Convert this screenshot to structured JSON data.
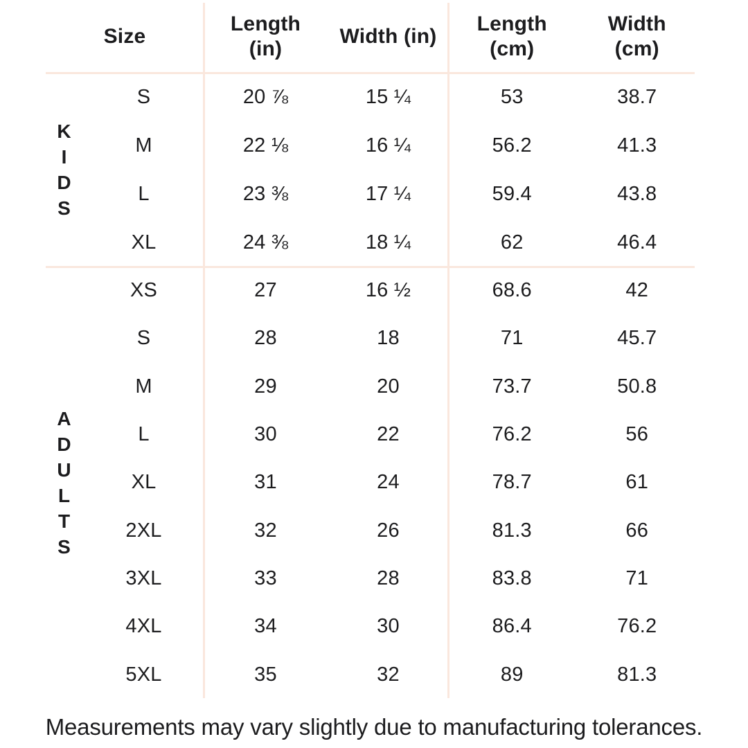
{
  "colors": {
    "background": "#ffffff",
    "text": "#1c1c1e",
    "divider": "#fae7dd"
  },
  "header_display": {
    "size": [
      "Size"
    ],
    "length_in": [
      "Length",
      "(in)"
    ],
    "width_in": [
      "Width (in)"
    ],
    "length_cm": [
      "Length",
      "(cm)"
    ],
    "width_cm": [
      "Width",
      "(cm)"
    ]
  },
  "chart_data": {
    "type": "table",
    "title": "Apparel size chart",
    "columns": [
      "Size",
      "Length (in)",
      "Width (in)",
      "Length (cm)",
      "Width (cm)"
    ],
    "sections": [
      {
        "group": "KIDS",
        "rows": [
          [
            "S",
            "20 ⅞",
            "15 ¼",
            "53",
            "38.7"
          ],
          [
            "M",
            "22 ⅛",
            "16 ¼",
            "56.2",
            "41.3"
          ],
          [
            "L",
            "23 ⅜",
            "17 ¼",
            "59.4",
            "43.8"
          ],
          [
            "XL",
            "24 ⅜",
            "18 ¼",
            "62",
            "46.4"
          ]
        ]
      },
      {
        "group": "ADULTS",
        "rows": [
          [
            "XS",
            "27",
            "16 ½",
            "68.6",
            "42"
          ],
          [
            "S",
            "28",
            "18",
            "71",
            "45.7"
          ],
          [
            "M",
            "29",
            "20",
            "73.7",
            "50.8"
          ],
          [
            "L",
            "30",
            "22",
            "76.2",
            "56"
          ],
          [
            "XL",
            "31",
            "24",
            "78.7",
            "61"
          ],
          [
            "2XL",
            "32",
            "26",
            "81.3",
            "66"
          ],
          [
            "3XL",
            "33",
            "28",
            "83.8",
            "71"
          ],
          [
            "4XL",
            "34",
            "30",
            "86.4",
            "76.2"
          ],
          [
            "5XL",
            "35",
            "32",
            "89",
            "81.3"
          ]
        ]
      }
    ],
    "footnote": "Measurements may vary slightly due to manufacturing tolerances."
  }
}
